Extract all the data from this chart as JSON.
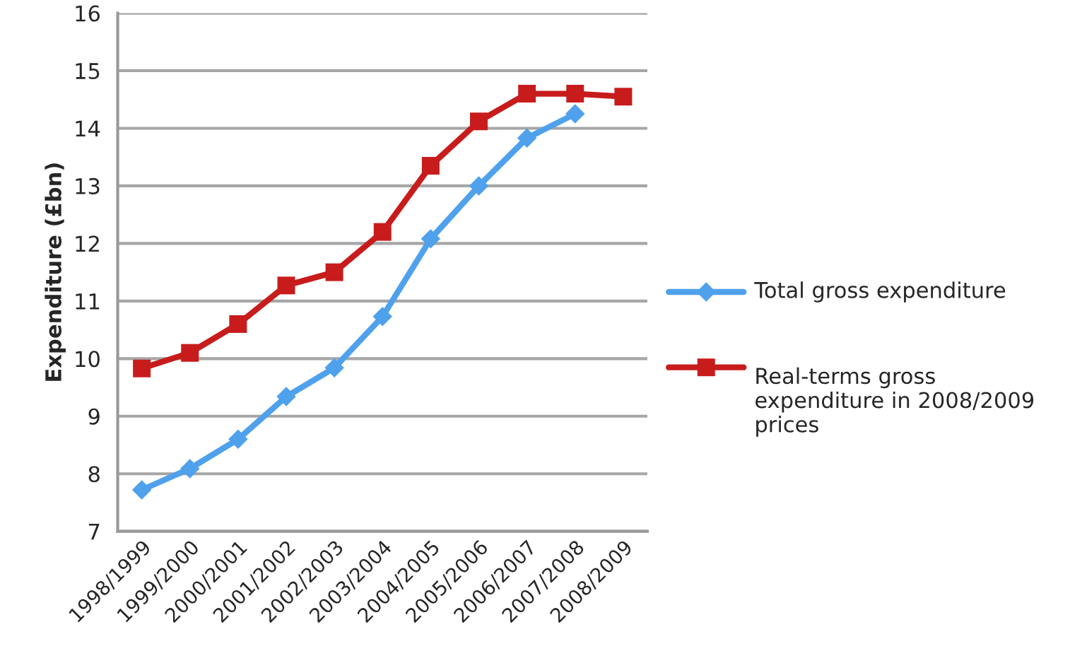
{
  "chart_data": {
    "type": "line",
    "ylabel": "Expenditure (£bn)",
    "categories": [
      "1998/1999",
      "1999/2000",
      "2000/2001",
      "2001/2002",
      "2002/2003",
      "2003/2004",
      "2004/2005",
      "2005/2006",
      "2006/2007",
      "2007/2008",
      "2008/2009"
    ],
    "series": [
      {
        "name": "Total gross expenditure",
        "color": "#4fa1ec",
        "marker": "diamond",
        "values": [
          7.72,
          8.09,
          8.6,
          9.34,
          9.84,
          10.73,
          12.08,
          13.0,
          13.83,
          14.25,
          null
        ]
      },
      {
        "name": "Real-terms gross expenditure in 2008/2009 prices",
        "color": "#c81c1c",
        "marker": "square",
        "values": [
          9.83,
          10.1,
          10.6,
          11.27,
          11.5,
          12.2,
          13.35,
          14.12,
          14.6,
          14.6,
          14.55
        ]
      }
    ],
    "ylim": [
      7,
      16
    ],
    "yticks": [
      7,
      8,
      9,
      10,
      11,
      12,
      13,
      14,
      15,
      16
    ],
    "grid": "y",
    "legend": "right",
    "line_style": "solid"
  }
}
